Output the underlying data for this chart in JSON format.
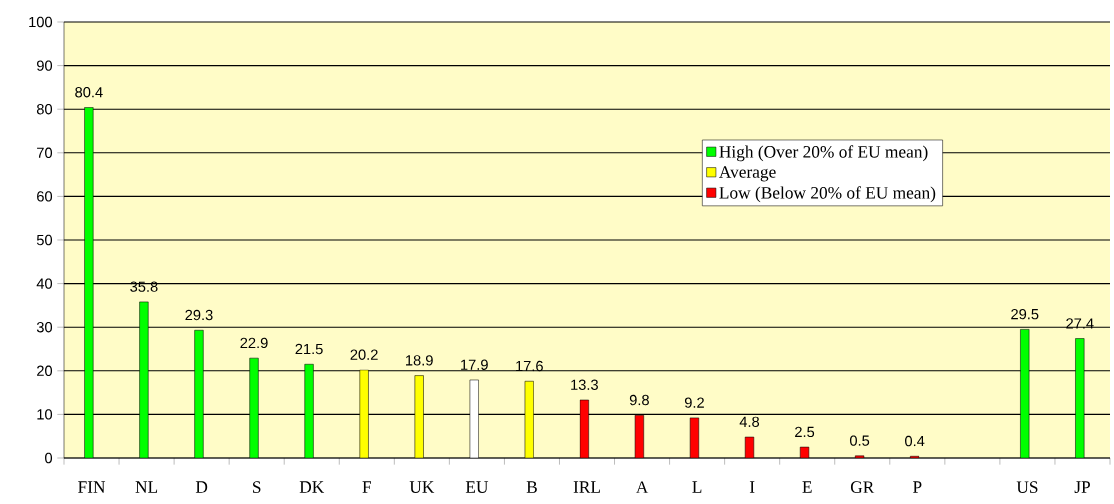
{
  "chart_data": {
    "type": "bar",
    "categories": [
      "FIN",
      "NL",
      "D",
      "S",
      "DK",
      "F",
      "UK",
      "EU",
      "B",
      "IRL",
      "A",
      "L",
      "I",
      "E",
      "GR",
      "P",
      null,
      "US",
      "JP"
    ],
    "series": [
      {
        "name": "High (Over 20% of EU mean)",
        "color": "#00ff00",
        "values": [
          80.4,
          35.8,
          29.3,
          22.9,
          21.5,
          null,
          null,
          null,
          null,
          null,
          null,
          null,
          null,
          null,
          null,
          null,
          null,
          29.5,
          27.4
        ]
      },
      {
        "name": "Average",
        "color": "#ffff00",
        "values": [
          null,
          null,
          null,
          null,
          null,
          20.2,
          18.9,
          null,
          17.6,
          null,
          null,
          null,
          null,
          null,
          null,
          null,
          null,
          null,
          null
        ]
      },
      {
        "name": "Low (Below 20% of EU mean)",
        "color": "#ff0000",
        "values": [
          null,
          null,
          null,
          null,
          null,
          null,
          null,
          null,
          null,
          13.3,
          9.8,
          9.2,
          4.8,
          2.5,
          0.5,
          0.4,
          null,
          null,
          null
        ]
      },
      {
        "color": "#ffffff",
        "values": [
          null,
          null,
          null,
          null,
          null,
          null,
          null,
          17.9,
          null,
          null,
          null,
          null,
          null,
          null,
          null,
          null,
          null,
          null,
          null
        ]
      }
    ],
    "ylim": [
      0,
      100
    ],
    "yticks": [
      0,
      10,
      20,
      30,
      40,
      50,
      60,
      70,
      80,
      90,
      100
    ],
    "grid": "y",
    "legend": "right",
    "data_labels": true
  }
}
